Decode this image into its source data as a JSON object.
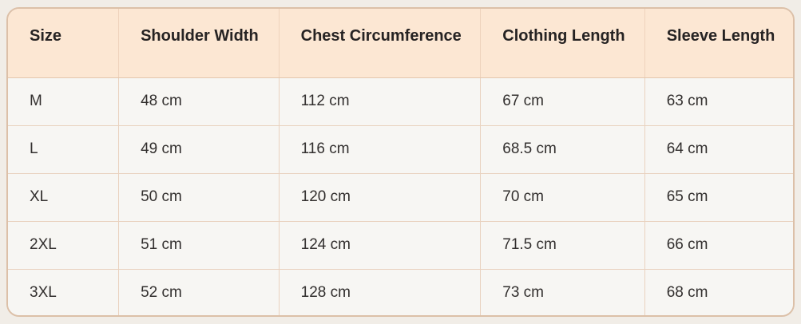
{
  "chart_data": {
    "type": "table",
    "columns": [
      "Size",
      "Shoulder Width",
      "Chest Circumference",
      "Clothing Length",
      "Sleeve Length"
    ],
    "rows": [
      [
        "M",
        "48 cm",
        "112 cm",
        "67 cm",
        "63 cm"
      ],
      [
        "L",
        "49 cm",
        "116 cm",
        "68.5 cm",
        "64 cm"
      ],
      [
        "XL",
        "50 cm",
        "120 cm",
        "70 cm",
        "65 cm"
      ],
      [
        "2XL",
        "51 cm",
        "124 cm",
        "71.5 cm",
        "66 cm"
      ],
      [
        "3XL",
        "52 cm",
        "128 cm",
        "73 cm",
        "68 cm"
      ]
    ],
    "unit": "cm",
    "layout_hints": {
      "header_position": "top",
      "grid": true,
      "rounded_corners": true
    }
  },
  "colors": {
    "page_bg": "#f1ede7",
    "header_bg": "#fce7d3",
    "cell_bg": "#f7f6f3",
    "border_outer": "#dcc0a8",
    "border_inner": "#e9d2bf",
    "header_text": "#262323",
    "cell_text": "#322f2e"
  }
}
